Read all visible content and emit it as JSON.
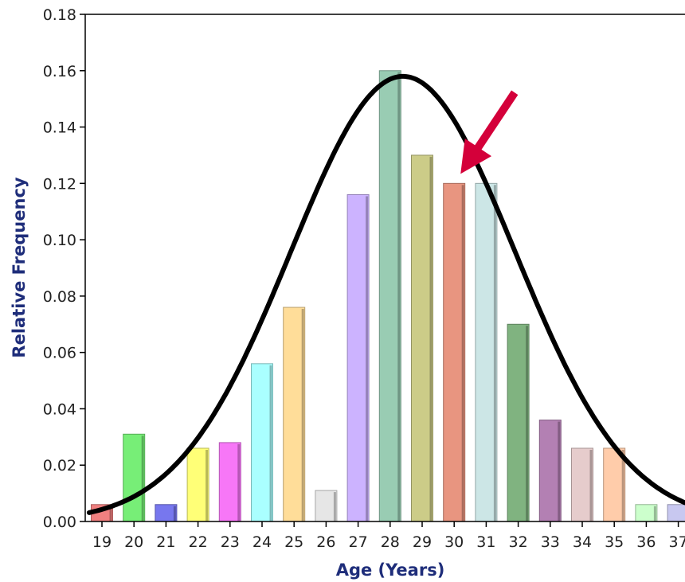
{
  "chart_data": {
    "type": "bar",
    "title": "",
    "xlabel": "Age (Years)",
    "ylabel": "Relative Frequency",
    "categories": [
      "19",
      "20",
      "21",
      "22",
      "23",
      "24",
      "25",
      "26",
      "27",
      "28",
      "29",
      "30",
      "31",
      "32",
      "33",
      "34",
      "35",
      "36",
      "37"
    ],
    "values": [
      0.006,
      0.031,
      0.006,
      0.026,
      0.028,
      0.056,
      0.076,
      0.011,
      0.116,
      0.16,
      0.13,
      0.12,
      0.12,
      0.07,
      0.036,
      0.026,
      0.026,
      0.006,
      0.006
    ],
    "bar_colors": [
      "#f08080",
      "#77ee77",
      "#7777ee",
      "#ffff77",
      "#f777f7",
      "#aaffff",
      "#ffdd99",
      "#e6e6e6",
      "#ccb3ff",
      "#99ccb3",
      "#cccc88",
      "#e89580",
      "#cce6e6",
      "#80b380",
      "#b380b3",
      "#e6cccc",
      "#ffccaa",
      "#ccffcc",
      "#c8c8f0"
    ],
    "ylim": [
      0,
      0.18
    ],
    "yticks": [
      "0.00",
      "0.02",
      "0.04",
      "0.06",
      "0.08",
      "0.10",
      "0.12",
      "0.14",
      "0.16",
      "0.18"
    ],
    "curve": {
      "type": "normal-fit",
      "mean": 28.4,
      "sd": 3.5,
      "peak": 0.158,
      "color": "#000000"
    },
    "annotation": {
      "type": "arrow",
      "target_category": "30",
      "color": "#d4003a"
    },
    "grid": false
  }
}
